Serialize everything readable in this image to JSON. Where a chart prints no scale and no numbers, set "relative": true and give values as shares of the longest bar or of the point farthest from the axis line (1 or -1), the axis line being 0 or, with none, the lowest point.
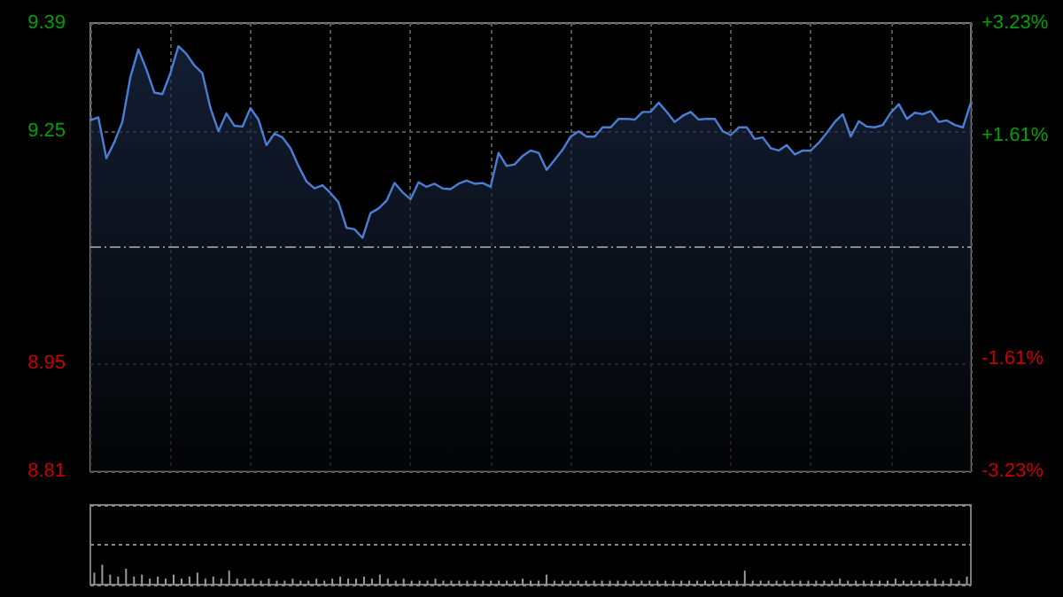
{
  "chart_data": [
    {
      "type": "area",
      "categories": [
        null,
        null,
        null,
        null,
        null,
        null,
        null,
        null,
        null,
        null,
        null,
        null,
        null,
        null,
        null,
        null,
        null,
        null,
        null,
        null,
        null,
        null,
        null,
        null,
        null,
        null,
        null,
        null,
        null,
        null,
        null,
        null,
        null,
        null,
        null,
        null,
        null,
        null,
        null,
        null,
        null,
        null,
        null,
        null,
        null,
        null,
        null,
        null,
        null,
        null,
        null,
        null,
        null,
        null,
        null,
        null,
        null,
        null,
        null,
        null,
        null,
        null,
        null,
        null,
        null,
        null,
        null,
        null,
        null,
        null,
        null,
        null,
        null,
        null,
        null,
        null,
        null,
        null,
        null,
        null,
        null,
        null,
        null,
        null,
        null,
        null,
        null,
        null,
        null,
        null,
        null,
        null,
        null,
        null,
        null,
        null,
        null,
        null,
        null,
        null,
        null,
        null,
        null,
        null,
        null,
        null,
        null,
        null,
        null,
        null,
        null
      ],
      "series": [
        {
          "color": "#4a7fd4",
          "values": [
            9.264,
            9.268,
            9.215,
            9.236,
            9.262,
            9.32,
            9.356,
            9.33,
            9.3,
            9.298,
            9.325,
            9.36,
            9.35,
            9.335,
            9.325,
            9.28,
            9.25,
            9.273,
            9.257,
            9.256,
            9.28,
            9.265,
            9.232,
            9.247,
            9.242,
            9.228,
            9.205,
            9.185,
            9.176,
            9.18,
            9.17,
            9.158,
            9.125,
            9.123,
            9.112,
            9.144,
            9.15,
            9.16,
            9.183,
            9.171,
            9.162,
            9.184,
            9.178,
            9.182,
            9.176,
            9.175,
            9.182,
            9.186,
            9.182,
            9.183,
            9.178,
            9.222,
            9.205,
            9.207,
            9.218,
            9.225,
            9.222,
            9.2,
            9.213,
            9.226,
            9.243,
            9.25,
            9.243,
            9.243,
            9.255,
            9.255,
            9.266,
            9.266,
            9.265,
            9.275,
            9.275,
            9.287,
            9.275,
            9.262,
            9.27,
            9.275,
            9.265,
            9.266,
            9.266,
            9.25,
            9.245,
            9.255,
            9.255,
            9.24,
            9.242,
            9.228,
            9.225,
            9.232,
            9.22,
            9.225,
            9.225,
            9.235,
            9.248,
            9.262,
            9.272,
            9.243,
            9.263,
            9.256,
            9.255,
            9.258,
            9.274,
            9.285,
            9.266,
            9.274,
            9.272,
            9.276,
            9.262,
            9.264,
            9.258,
            9.255,
            9.287
          ]
        }
      ],
      "ylim": [
        8.81,
        9.39
      ],
      "yticks": [
        8.81,
        8.95,
        9.25,
        9.39
      ],
      "y2lim": [
        -3.23,
        3.23
      ],
      "y2ticks": [
        {
          "value": -3.23,
          "label": "-3.23%"
        },
        {
          "value": -1.61,
          "label": "-1.61%"
        },
        {
          "value": 1.61,
          "label": "+1.61%"
        },
        {
          "value": 3.23,
          "label": "+3.23%"
        }
      ],
      "ref_lines": [
        {
          "axis": "y",
          "value": 9.1,
          "color": "#8a8a8a",
          "line_style": "dashed"
        }
      ],
      "grid": true
    },
    {
      "type": "bar",
      "relative": true,
      "color": "#9a9a9a",
      "categories": [
        null,
        null,
        null,
        null,
        null,
        null,
        null,
        null,
        null,
        null,
        null,
        null,
        null,
        null,
        null,
        null,
        null,
        null,
        null,
        null,
        null,
        null,
        null,
        null,
        null,
        null,
        null,
        null,
        null,
        null,
        null,
        null,
        null,
        null,
        null,
        null,
        null,
        null,
        null,
        null,
        null,
        null,
        null,
        null,
        null,
        null,
        null,
        null,
        null,
        null,
        null,
        null,
        null,
        null,
        null,
        null,
        null,
        null,
        null,
        null,
        null,
        null,
        null,
        null,
        null,
        null,
        null,
        null,
        null,
        null,
        null,
        null,
        null,
        null,
        null,
        null,
        null,
        null,
        null,
        null,
        null,
        null,
        null,
        null,
        null,
        null,
        null,
        null,
        null,
        null,
        null,
        null,
        null,
        null,
        null,
        null,
        null,
        null,
        null,
        null,
        null,
        null,
        null,
        null,
        null,
        null,
        null,
        null,
        null,
        null,
        null
      ],
      "values": [
        0.6,
        1,
        0.5,
        0.4,
        0.8,
        0.4,
        0.5,
        0.3,
        0.4,
        0.3,
        0.5,
        0.3,
        0.4,
        0.6,
        0.3,
        0.4,
        0.3,
        0.7,
        0.3,
        0.3,
        0.3,
        0.2,
        0.3,
        0.2,
        0.2,
        0.3,
        0.2,
        0.2,
        0.3,
        0.2,
        0.3,
        0.4,
        0.3,
        0.3,
        0.4,
        0.3,
        0.5,
        0.3,
        0.2,
        0.3,
        0.2,
        0.2,
        0.2,
        0.3,
        0.2,
        0.2,
        0.2,
        0.2,
        0.2,
        0.2,
        0.2,
        0.2,
        0.2,
        0.2,
        0.3,
        0.2,
        0.2,
        0.5,
        0.2,
        0.2,
        0.2,
        0.2,
        0.2,
        0.2,
        0.2,
        0.2,
        0.2,
        0.2,
        0.2,
        0.2,
        0.2,
        0.2,
        0.2,
        0.2,
        0.2,
        0.2,
        0.2,
        0.2,
        0.2,
        0.2,
        0.2,
        0.2,
        0.7,
        0.2,
        0.2,
        0.2,
        0.2,
        0.2,
        0.2,
        0.2,
        0.2,
        0.2,
        0.2,
        0.2,
        0.3,
        0.2,
        0.2,
        0.2,
        0.2,
        0.2,
        0.2,
        0.3,
        0.2,
        0.2,
        0.2,
        0.2,
        0.3,
        0.2,
        0.3,
        0.2,
        0.4
      ]
    }
  ]
}
